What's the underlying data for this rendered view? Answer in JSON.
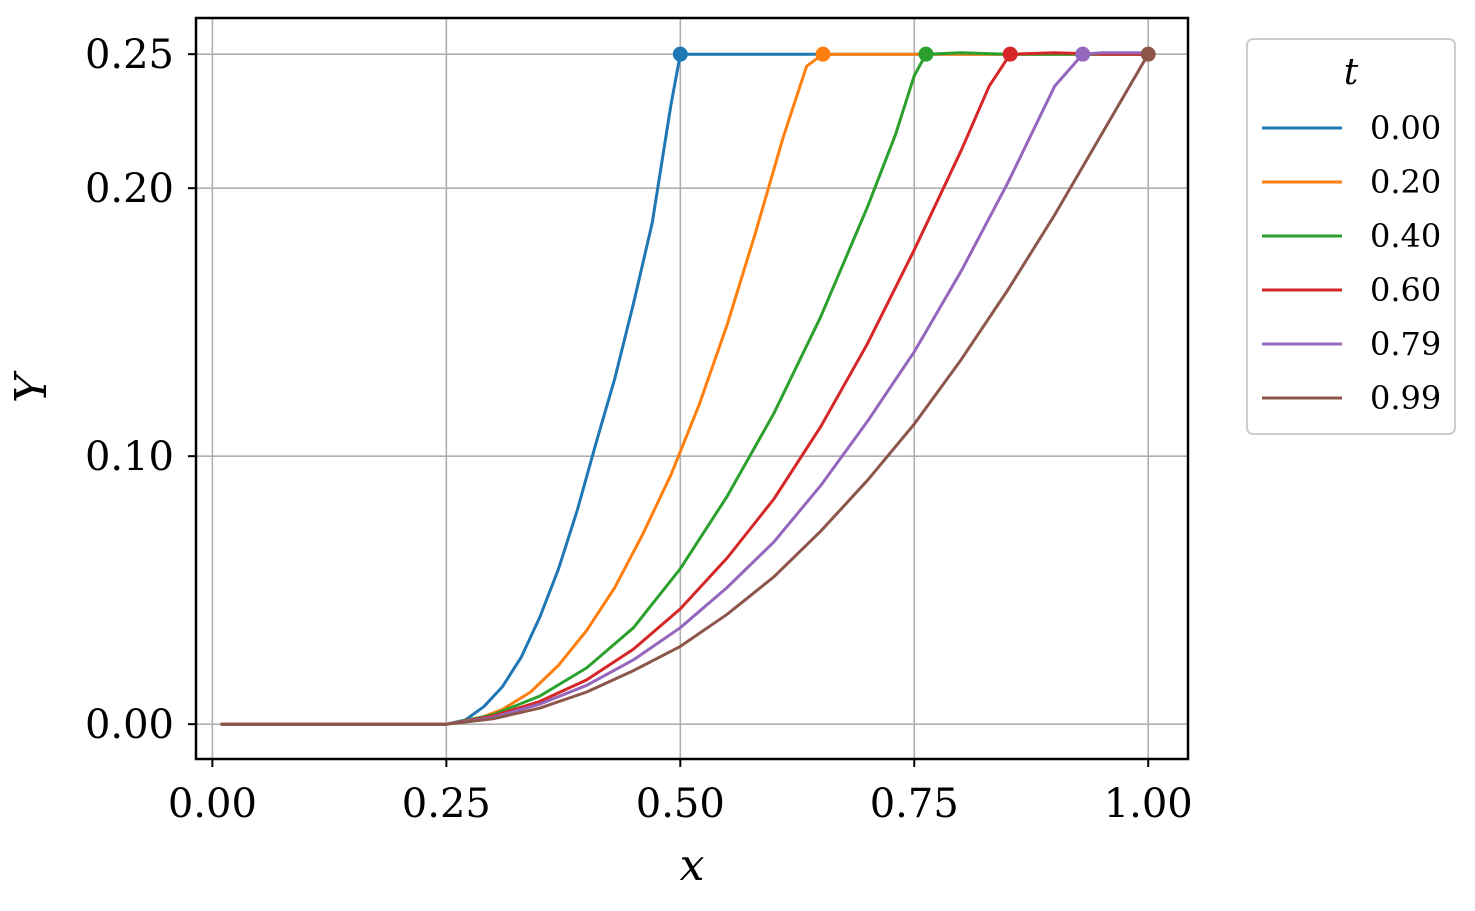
{
  "chart_data": {
    "type": "line",
    "title": "",
    "xlabel": "x",
    "ylabel": "Y",
    "xlim": [
      -0.0175,
      1.0425
    ],
    "ylim": [
      -0.013,
      0.2635
    ],
    "xticks": [
      0.0,
      0.25,
      0.5,
      0.75,
      1.0
    ],
    "xtick_labels": [
      "0.00",
      "0.25",
      "0.50",
      "0.75",
      "1.00"
    ],
    "yticks": [
      0.0,
      0.1,
      0.2,
      0.25
    ],
    "ytick_labels": [
      "0.00",
      "0.10",
      "0.20",
      "0.25"
    ],
    "grid": true,
    "legend": {
      "title": "t",
      "placement": "outside-right-top"
    },
    "series": [
      {
        "name": "0.00",
        "color": "#1f77b4",
        "endpoint": [
          0.5,
          0.25
        ],
        "x": [
          0.01,
          0.05,
          0.1,
          0.15,
          0.2,
          0.25,
          0.27,
          0.29,
          0.31,
          0.33,
          0.35,
          0.37,
          0.39,
          0.41,
          0.43,
          0.45,
          0.47,
          0.49,
          0.5,
          0.51,
          0.55,
          0.6,
          0.65,
          0.7,
          0.75,
          0.8,
          0.85,
          0.9,
          0.95,
          1.0
        ],
        "y": [
          0.0,
          0.0,
          0.0,
          0.0,
          0.0,
          0.0,
          0.0015,
          0.0065,
          0.014,
          0.025,
          0.04,
          0.058,
          0.08,
          0.105,
          0.129,
          0.157,
          0.187,
          0.231,
          0.25,
          0.25,
          0.25,
          0.25,
          0.25,
          0.25,
          0.25,
          0.25,
          0.25,
          0.25,
          0.25,
          0.25
        ]
      },
      {
        "name": "0.20",
        "color": "#ff7f0e",
        "endpoint": [
          0.6525,
          0.25
        ],
        "x": [
          0.01,
          0.05,
          0.1,
          0.15,
          0.2,
          0.25,
          0.28,
          0.31,
          0.34,
          0.37,
          0.4,
          0.43,
          0.46,
          0.49,
          0.52,
          0.55,
          0.58,
          0.61,
          0.635,
          0.6525,
          0.7,
          0.75,
          0.8,
          0.85,
          0.9,
          0.95,
          1.0
        ],
        "y": [
          0.0,
          0.0,
          0.0,
          0.0,
          0.0,
          0.0,
          0.0015,
          0.0055,
          0.012,
          0.022,
          0.035,
          0.051,
          0.071,
          0.093,
          0.119,
          0.149,
          0.183,
          0.219,
          0.2455,
          0.25,
          0.25,
          0.25,
          0.25,
          0.25,
          0.25,
          0.25,
          0.25
        ]
      },
      {
        "name": "0.40",
        "color": "#2ca02c",
        "endpoint": [
          0.7625,
          0.25
        ],
        "x": [
          0.01,
          0.05,
          0.1,
          0.15,
          0.2,
          0.25,
          0.3,
          0.35,
          0.4,
          0.45,
          0.5,
          0.55,
          0.6,
          0.65,
          0.7,
          0.73,
          0.75,
          0.7625,
          0.8,
          0.85,
          0.9,
          0.95,
          1.0
        ],
        "y": [
          0.0,
          0.0,
          0.0,
          0.0,
          0.0,
          0.0,
          0.0035,
          0.0105,
          0.021,
          0.036,
          0.058,
          0.085,
          0.116,
          0.152,
          0.193,
          0.22,
          0.242,
          0.25,
          0.2505,
          0.25,
          0.25,
          0.25,
          0.25
        ]
      },
      {
        "name": "0.60",
        "color": "#d62728",
        "endpoint": [
          0.8525,
          0.25
        ],
        "x": [
          0.01,
          0.05,
          0.1,
          0.15,
          0.2,
          0.25,
          0.3,
          0.35,
          0.4,
          0.45,
          0.5,
          0.55,
          0.6,
          0.65,
          0.7,
          0.75,
          0.8,
          0.83,
          0.8525,
          0.9,
          0.95,
          1.0
        ],
        "y": [
          0.0,
          0.0,
          0.0,
          0.0,
          0.0,
          0.0,
          0.003,
          0.0085,
          0.0165,
          0.028,
          0.043,
          0.062,
          0.084,
          0.111,
          0.142,
          0.177,
          0.214,
          0.238,
          0.25,
          0.2505,
          0.25,
          0.25
        ]
      },
      {
        "name": "0.79",
        "color": "#9467bd",
        "endpoint": [
          0.93,
          0.25
        ],
        "x": [
          0.01,
          0.05,
          0.1,
          0.15,
          0.2,
          0.25,
          0.3,
          0.35,
          0.4,
          0.45,
          0.5,
          0.55,
          0.6,
          0.65,
          0.7,
          0.75,
          0.8,
          0.85,
          0.9,
          0.93,
          0.95,
          1.0
        ],
        "y": [
          0.0,
          0.0,
          0.0,
          0.0,
          0.0,
          0.0,
          0.0025,
          0.0075,
          0.0145,
          0.024,
          0.036,
          0.051,
          0.068,
          0.089,
          0.113,
          0.139,
          0.169,
          0.202,
          0.238,
          0.25,
          0.2505,
          0.2505
        ]
      },
      {
        "name": "0.99",
        "color": "#8c564b",
        "endpoint": [
          1.0,
          0.25
        ],
        "x": [
          0.01,
          0.05,
          0.1,
          0.15,
          0.2,
          0.25,
          0.3,
          0.35,
          0.4,
          0.45,
          0.5,
          0.55,
          0.6,
          0.65,
          0.7,
          0.75,
          0.8,
          0.85,
          0.9,
          0.95,
          1.0
        ],
        "y": [
          0.0,
          0.0,
          0.0,
          0.0,
          0.0,
          0.0,
          0.002,
          0.006,
          0.012,
          0.02,
          0.029,
          0.041,
          0.055,
          0.072,
          0.091,
          0.112,
          0.136,
          0.162,
          0.19,
          0.22,
          0.25
        ]
      }
    ]
  }
}
